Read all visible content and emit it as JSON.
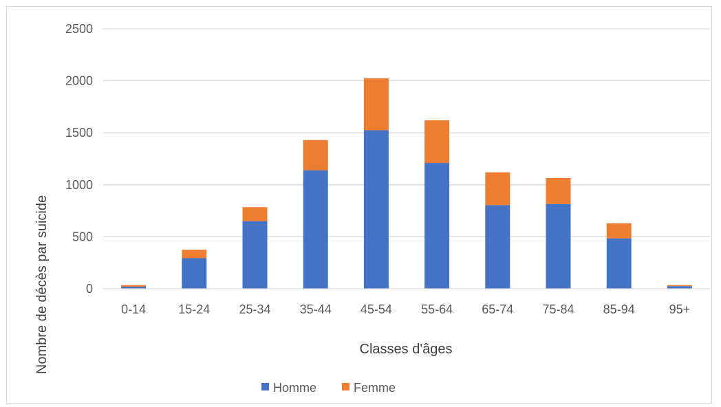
{
  "chart_data": {
    "type": "bar",
    "stacked": true,
    "title": "",
    "xlabel": "Classes d'âges",
    "ylabel": "Nombre de décès par suicide",
    "categories": [
      "0-14",
      "15-24",
      "25-34",
      "35-44",
      "45-54",
      "55-64",
      "65-74",
      "75-84",
      "85-94",
      "95+"
    ],
    "series": [
      {
        "name": "Homme",
        "color": "#4472c4",
        "values": [
          20,
          295,
          650,
          1140,
          1525,
          1210,
          805,
          815,
          485,
          25
        ]
      },
      {
        "name": "Femme",
        "color": "#ed7d31",
        "values": [
          15,
          80,
          135,
          290,
          500,
          410,
          315,
          250,
          145,
          10
        ]
      }
    ],
    "ylim": [
      0,
      2500
    ],
    "yticks": [
      0,
      500,
      1000,
      1500,
      2000,
      2500
    ],
    "grid": true,
    "legend": "bottom"
  }
}
